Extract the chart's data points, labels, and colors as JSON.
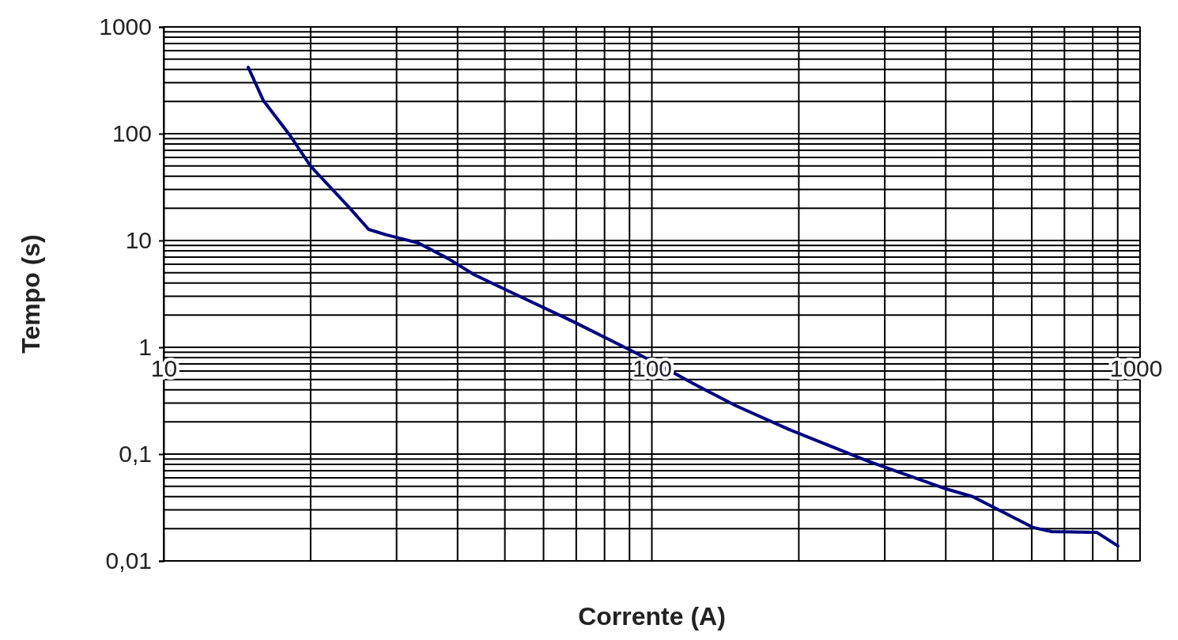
{
  "chart_data": {
    "type": "line",
    "xlabel": "Corrente (A)",
    "ylabel": "Tempo (s)",
    "log": "xy",
    "grid": true,
    "marker": "none",
    "line_style": "solid",
    "xlim": [
      10,
      1000
    ],
    "xticks": [
      10,
      {
        "value": 20,
        "label": null
      },
      {
        "value": 30,
        "label": null
      },
      {
        "value": 40,
        "label": null
      },
      {
        "value": 50,
        "label": null
      },
      {
        "value": 60,
        "label": null
      },
      {
        "value": 70,
        "label": null
      },
      {
        "value": 80,
        "label": null
      },
      {
        "value": 90,
        "label": null
      },
      100,
      {
        "value": 200,
        "label": null
      },
      {
        "value": 300,
        "label": null
      },
      {
        "value": 400,
        "label": null
      },
      {
        "value": 500,
        "label": null
      },
      {
        "value": 600,
        "label": null
      },
      {
        "value": 700,
        "label": null
      },
      {
        "value": 800,
        "label": null
      },
      {
        "value": 900,
        "label": null
      },
      1000
    ],
    "ylim": [
      0.01,
      1000
    ],
    "yticks": [
      {
        "value": 0.01,
        "label": "0,01"
      },
      {
        "value": 0.02,
        "label": null
      },
      {
        "value": 0.03,
        "label": null
      },
      {
        "value": 0.04,
        "label": null
      },
      {
        "value": 0.05,
        "label": null
      },
      {
        "value": 0.06,
        "label": null
      },
      {
        "value": 0.07,
        "label": null
      },
      {
        "value": 0.08,
        "label": null
      },
      {
        "value": 0.09,
        "label": null
      },
      {
        "value": 0.1,
        "label": "0,1"
      },
      {
        "value": 0.2,
        "label": null
      },
      {
        "value": 0.3,
        "label": null
      },
      {
        "value": 0.4,
        "label": null
      },
      {
        "value": 0.5,
        "label": null
      },
      {
        "value": 0.6,
        "label": null
      },
      {
        "value": 0.7,
        "label": null
      },
      {
        "value": 0.8,
        "label": null
      },
      {
        "value": 0.9,
        "label": null
      },
      1,
      {
        "value": 2,
        "label": null
      },
      {
        "value": 3,
        "label": null
      },
      {
        "value": 4,
        "label": null
      },
      {
        "value": 5,
        "label": null
      },
      {
        "value": 6,
        "label": null
      },
      {
        "value": 7,
        "label": null
      },
      {
        "value": 8,
        "label": null
      },
      {
        "value": 9,
        "label": null
      },
      10,
      {
        "value": 20,
        "label": null
      },
      {
        "value": 30,
        "label": null
      },
      {
        "value": 40,
        "label": null
      },
      {
        "value": 50,
        "label": null
      },
      {
        "value": 60,
        "label": null
      },
      {
        "value": 70,
        "label": null
      },
      {
        "value": 80,
        "label": null
      },
      {
        "value": 90,
        "label": null
      },
      100,
      {
        "value": 200,
        "label": null
      },
      {
        "value": 300,
        "label": null
      },
      {
        "value": 400,
        "label": null
      },
      {
        "value": 500,
        "label": null
      },
      {
        "value": 600,
        "label": null
      },
      {
        "value": 700,
        "label": null
      },
      {
        "value": 800,
        "label": null
      },
      {
        "value": 900,
        "label": null
      },
      1000
    ],
    "series": [
      {
        "color": "#000080",
        "x": [
          14.9,
          16,
          18.1,
          20,
          23.8,
          26.3,
          28.6,
          33.2,
          38.2,
          43.2,
          50.6,
          69.2,
          90.8,
          102.6,
          123.6,
          148.8,
          191,
          230,
          277,
          402,
          454,
          605,
          659,
          815,
          901
        ],
        "values": [
          419,
          205,
          98,
          49.7,
          21.2,
          12.7,
          11.3,
          9.5,
          6.8,
          4.8,
          3.4,
          1.73,
          0.93,
          0.7,
          0.44,
          0.283,
          0.17,
          0.121,
          0.086,
          0.047,
          0.04,
          0.0205,
          0.0188,
          0.0185,
          0.0138
        ]
      }
    ]
  }
}
